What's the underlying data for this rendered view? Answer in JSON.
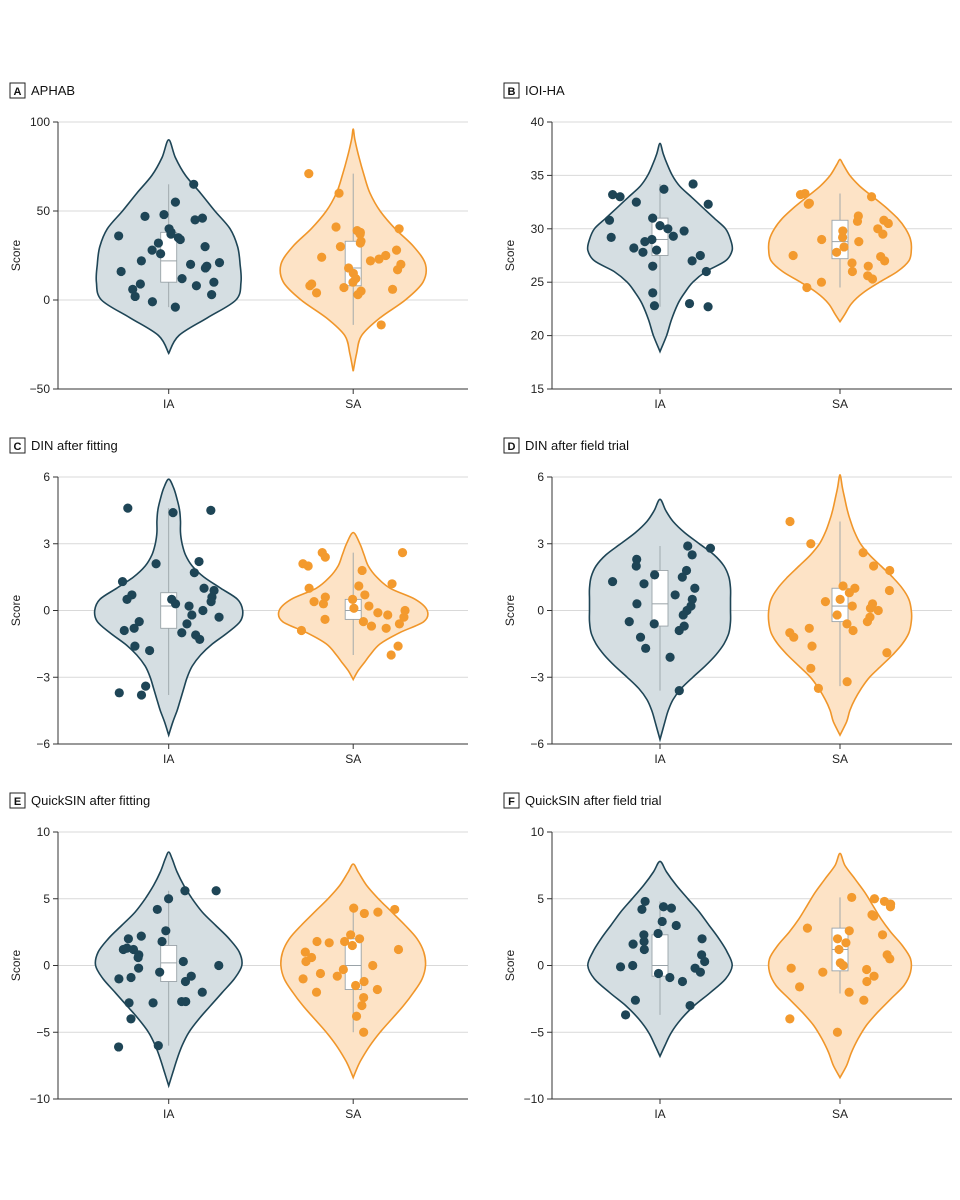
{
  "colors": {
    "ia_fill": "#d5dee2",
    "ia_stroke": "#1e4556",
    "ia_point": "#1e4556",
    "sa_fill": "#fde3c6",
    "sa_stroke": "#f0962a",
    "sa_point": "#f39a2e",
    "grid": "#d9d9d9"
  },
  "chart_data": [
    {
      "id": "A",
      "type": "violin",
      "title": "APHAB",
      "ylabel": "Score",
      "ylim": [
        -50,
        100
      ],
      "yticks": [
        -50,
        0,
        50,
        100
      ],
      "yticklabels": [
        "−50",
        "0",
        "50",
        "100"
      ],
      "categories": [
        "IA",
        "SA"
      ],
      "groups": [
        {
          "name": "IA",
          "violin_y": [
            -30,
            -20,
            -10,
            0,
            10,
            20,
            30,
            40,
            50,
            60,
            70,
            80,
            90
          ],
          "violin_halfwidth": [
            0,
            0.12,
            0.46,
            0.8,
            0.86,
            0.85,
            0.82,
            0.73,
            0.55,
            0.38,
            0.2,
            0.08,
            0
          ],
          "box": {
            "q1": 10,
            "median": 22,
            "q3": 38,
            "whisker_low": -4,
            "whisker_high": 65
          },
          "points": [
            65,
            55,
            48,
            47,
            46,
            45,
            40,
            38,
            37,
            36,
            35,
            34,
            32,
            30,
            28,
            26,
            22,
            21,
            20,
            19,
            18,
            16,
            12,
            10,
            9,
            8,
            6,
            3,
            2,
            -1,
            -4
          ]
        },
        {
          "name": "SA",
          "violin_y": [
            -40,
            -30,
            -20,
            -10,
            0,
            10,
            20,
            30,
            40,
            50,
            60,
            70,
            80,
            90,
            96
          ],
          "violin_halfwidth": [
            0,
            0.04,
            0.1,
            0.32,
            0.62,
            0.83,
            0.86,
            0.72,
            0.5,
            0.32,
            0.2,
            0.13,
            0.07,
            0.02,
            0
          ],
          "box": {
            "q1": 8,
            "median": 18,
            "q3": 33,
            "whisker_low": -14,
            "whisker_high": 71
          },
          "points": [
            71,
            60,
            41,
            40,
            39,
            38,
            37,
            33,
            32,
            30,
            28,
            25,
            24,
            23,
            22,
            20,
            18,
            17,
            15,
            12,
            10,
            9,
            8,
            7,
            6,
            5,
            4,
            3,
            -14
          ]
        }
      ]
    },
    {
      "id": "B",
      "type": "violin",
      "title": "IOI-HA",
      "ylabel": "Score",
      "ylim": [
        15,
        40
      ],
      "yticks": [
        15,
        20,
        25,
        30,
        35,
        40
      ],
      "yticklabels": [
        "15",
        "20",
        "25",
        "30",
        "35",
        "40"
      ],
      "categories": [
        "IA",
        "SA"
      ],
      "groups": [
        {
          "name": "IA",
          "violin_y": [
            18.5,
            20,
            21.5,
            23,
            24,
            25,
            26,
            27,
            28,
            29,
            30,
            31,
            32,
            33,
            34,
            35,
            36,
            37,
            38
          ],
          "violin_halfwidth": [
            0,
            0.08,
            0.14,
            0.22,
            0.3,
            0.4,
            0.56,
            0.8,
            0.88,
            0.86,
            0.8,
            0.66,
            0.52,
            0.38,
            0.24,
            0.15,
            0.09,
            0.04,
            0
          ],
          "box": {
            "q1": 27.5,
            "median": 29,
            "q3": 31,
            "whisker_low": 22.7,
            "whisker_high": 34.2
          },
          "points": [
            34.2,
            33.7,
            33.2,
            33,
            32.5,
            32.3,
            31,
            30.8,
            30.3,
            30,
            29.8,
            29.3,
            29.2,
            29,
            28.8,
            28.2,
            28,
            27.8,
            27.5,
            27,
            26.5,
            26,
            24,
            23,
            22.8,
            22.7
          ]
        },
        {
          "name": "SA",
          "violin_y": [
            21.3,
            22,
            23,
            24,
            25,
            26,
            27,
            28,
            29,
            30,
            31,
            32,
            33,
            34,
            35,
            36,
            36.5
          ],
          "violin_halfwidth": [
            0,
            0.06,
            0.14,
            0.28,
            0.48,
            0.7,
            0.84,
            0.87,
            0.86,
            0.8,
            0.7,
            0.56,
            0.4,
            0.24,
            0.12,
            0.04,
            0
          ],
          "box": {
            "q1": 27.2,
            "median": 28.8,
            "q3": 30.8,
            "whisker_low": 24.5,
            "whisker_high": 33.3
          },
          "points": [
            33.3,
            33.2,
            33,
            32.4,
            32.3,
            31.2,
            30.8,
            30.7,
            30.5,
            30,
            29.8,
            29.5,
            29.2,
            29,
            28.8,
            28.3,
            27.8,
            27.5,
            27.4,
            27,
            26.8,
            26.5,
            26,
            25.6,
            25.3,
            25,
            24.5
          ]
        }
      ]
    },
    {
      "id": "C",
      "type": "violin",
      "title": "DIN after fitting",
      "ylabel": "Score",
      "ylim": [
        -6,
        6
      ],
      "yticks": [
        -6,
        -3,
        0,
        3,
        6
      ],
      "yticklabels": [
        "−6",
        "−3",
        "0",
        "3",
        "6"
      ],
      "categories": [
        "IA",
        "SA"
      ],
      "groups": [
        {
          "name": "IA",
          "violin_y": [
            -5.6,
            -5,
            -4.5,
            -4,
            -3.5,
            -3,
            -2.5,
            -2,
            -1.5,
            -1,
            -0.5,
            0,
            0.5,
            1,
            1.5,
            2,
            2.5,
            3,
            3.5,
            4,
            4.5,
            5,
            5.5,
            5.9
          ],
          "violin_halfwidth": [
            0,
            0.05,
            0.1,
            0.14,
            0.18,
            0.22,
            0.28,
            0.38,
            0.52,
            0.7,
            0.85,
            0.88,
            0.82,
            0.62,
            0.42,
            0.28,
            0.2,
            0.16,
            0.14,
            0.14,
            0.13,
            0.1,
            0.06,
            0
          ],
          "box": {
            "q1": -0.8,
            "median": 0.2,
            "q3": 0.8,
            "whisker_low": -3.8,
            "whisker_high": 4.6
          },
          "points": [
            4.6,
            4.5,
            4.4,
            2.2,
            2.1,
            1.7,
            1.3,
            1.0,
            0.9,
            0.7,
            0.6,
            0.5,
            0.5,
            0.4,
            0.3,
            0.2,
            0,
            -0.2,
            -0.3,
            -0.5,
            -0.6,
            -0.8,
            -0.9,
            -1.0,
            -1.1,
            -1.3,
            -1.6,
            -1.8,
            -3.4,
            -3.7,
            -3.8
          ]
        },
        {
          "name": "SA",
          "violin_y": [
            -3.1,
            -2.7,
            -2.3,
            -2,
            -1.5,
            -1,
            -0.5,
            0,
            0.5,
            1,
            1.5,
            2,
            2.5,
            3,
            3.5
          ],
          "violin_halfwidth": [
            0,
            0.06,
            0.14,
            0.2,
            0.32,
            0.55,
            0.84,
            0.88,
            0.74,
            0.44,
            0.28,
            0.18,
            0.13,
            0.08,
            0
          ],
          "box": {
            "q1": -0.4,
            "median": 0,
            "q3": 0.5,
            "whisker_low": -2,
            "whisker_high": 2.6
          },
          "points": [
            2.6,
            2.6,
            2.4,
            2.1,
            2.0,
            1.8,
            1.2,
            1.1,
            1.0,
            0.7,
            0.6,
            0.5,
            0.4,
            0.3,
            0.2,
            0.1,
            0,
            -0.1,
            -0.2,
            -0.3,
            -0.4,
            -0.5,
            -0.6,
            -0.7,
            -0.8,
            -0.9,
            -1.6,
            -2.0
          ]
        }
      ]
    },
    {
      "id": "D",
      "type": "violin",
      "title": "DIN after field trial",
      "ylabel": "Score",
      "ylim": [
        -6,
        6
      ],
      "yticks": [
        -6,
        -3,
        0,
        3,
        6
      ],
      "yticklabels": [
        "−6",
        "−3",
        "0",
        "3",
        "6"
      ],
      "categories": [
        "IA",
        "SA"
      ],
      "groups": [
        {
          "name": "IA",
          "violin_y": [
            -5.8,
            -5,
            -4.5,
            -4,
            -3.5,
            -3,
            -2.5,
            -2,
            -1.5,
            -1,
            -0.5,
            0,
            0.5,
            1,
            1.5,
            2,
            2.5,
            3,
            3.5,
            4,
            4.5,
            5
          ],
          "violin_halfwidth": [
            0,
            0.06,
            0.1,
            0.16,
            0.26,
            0.4,
            0.55,
            0.68,
            0.78,
            0.84,
            0.86,
            0.86,
            0.86,
            0.86,
            0.84,
            0.78,
            0.66,
            0.48,
            0.3,
            0.16,
            0.07,
            0
          ],
          "box": {
            "q1": -0.7,
            "median": 0.3,
            "q3": 1.8,
            "whisker_low": -3.6,
            "whisker_high": 2.9
          },
          "points": [
            2.9,
            2.8,
            2.5,
            2.3,
            2.0,
            1.8,
            1.6,
            1.5,
            1.3,
            1.2,
            1.0,
            0.7,
            0.5,
            0.3,
            0.2,
            0,
            -0.2,
            -0.5,
            -0.6,
            -0.7,
            -0.9,
            -1.2,
            -1.7,
            -2.1,
            -3.6
          ]
        },
        {
          "name": "SA",
          "violin_y": [
            -5.6,
            -5,
            -4.5,
            -4,
            -3.5,
            -3,
            -2.5,
            -2,
            -1.5,
            -1,
            -0.5,
            0,
            0.5,
            1,
            1.5,
            2,
            2.5,
            3,
            3.5,
            4,
            4.5,
            5,
            5.5,
            6.1
          ],
          "violin_halfwidth": [
            0,
            0.08,
            0.12,
            0.18,
            0.26,
            0.36,
            0.5,
            0.64,
            0.76,
            0.84,
            0.87,
            0.87,
            0.84,
            0.76,
            0.64,
            0.5,
            0.36,
            0.25,
            0.18,
            0.13,
            0.09,
            0.06,
            0.03,
            0
          ],
          "box": {
            "q1": -0.5,
            "median": 0.2,
            "q3": 1.0,
            "whisker_low": -3.4,
            "whisker_high": 4.0
          },
          "points": [
            4.0,
            3.0,
            2.6,
            2.0,
            1.8,
            1.1,
            1.0,
            0.9,
            0.8,
            0.5,
            0.4,
            0.3,
            0.2,
            0.1,
            0,
            -0.2,
            -0.3,
            -0.5,
            -0.6,
            -0.8,
            -0.9,
            -1.0,
            -1.2,
            -1.6,
            -1.9,
            -2.6,
            -3.2,
            -3.5
          ]
        }
      ]
    },
    {
      "id": "E",
      "type": "violin",
      "title": "QuickSIN after fitting",
      "ylabel": "Score",
      "ylim": [
        -10,
        10
      ],
      "yticks": [
        -10,
        -5,
        0,
        5,
        10
      ],
      "yticklabels": [
        "−10",
        "−5",
        "0",
        "5",
        "10"
      ],
      "categories": [
        "IA",
        "SA"
      ],
      "groups": [
        {
          "name": "IA",
          "violin_y": [
            -9,
            -8,
            -7,
            -6,
            -5,
            -4,
            -3,
            -2,
            -1,
            0,
            1,
            2,
            3,
            4,
            5,
            6,
            7,
            8,
            8.5
          ],
          "violin_halfwidth": [
            0,
            0.05,
            0.1,
            0.16,
            0.24,
            0.36,
            0.5,
            0.64,
            0.78,
            0.87,
            0.84,
            0.72,
            0.56,
            0.4,
            0.28,
            0.18,
            0.1,
            0.04,
            0
          ],
          "box": {
            "q1": -1.2,
            "median": 0.2,
            "q3": 1.5,
            "whisker_low": -6,
            "whisker_high": 5.6
          },
          "points": [
            5.6,
            5.6,
            5.0,
            4.2,
            2.6,
            2.2,
            2.0,
            1.8,
            1.3,
            1.2,
            1.2,
            0.8,
            0.6,
            0.3,
            0,
            -0.2,
            -0.5,
            -0.8,
            -0.9,
            -1.0,
            -1.2,
            -2.0,
            -2.7,
            -2.7,
            -2.8,
            -2.8,
            -4.0,
            -6.0,
            -6.1
          ]
        },
        {
          "name": "SA",
          "violin_y": [
            -8.4,
            -7.5,
            -7,
            -6,
            -5,
            -4,
            -3,
            -2,
            -1,
            0,
            1,
            2,
            3,
            4,
            5,
            6,
            7,
            7.6
          ],
          "violin_halfwidth": [
            0,
            0.06,
            0.1,
            0.2,
            0.32,
            0.46,
            0.6,
            0.72,
            0.82,
            0.86,
            0.84,
            0.76,
            0.62,
            0.46,
            0.3,
            0.16,
            0.06,
            0
          ],
          "box": {
            "q1": -1.8,
            "median": 0,
            "q3": 2.0,
            "whisker_low": -5.0,
            "whisker_high": 4.3
          },
          "points": [
            4.3,
            4.2,
            4.0,
            3.9,
            2.3,
            2.0,
            1.8,
            1.8,
            1.7,
            1.5,
            1.2,
            1.0,
            0.6,
            0.3,
            0,
            -0.3,
            -0.6,
            -0.8,
            -1.0,
            -1.2,
            -1.5,
            -1.8,
            -2.0,
            -2.4,
            -3.0,
            -3.8,
            -5.0
          ]
        }
      ]
    },
    {
      "id": "F",
      "type": "violin",
      "title": "QuickSIN after field trial",
      "ylabel": "Score",
      "ylim": [
        -10,
        10
      ],
      "yticks": [
        -10,
        -5,
        0,
        5,
        10
      ],
      "yticklabels": [
        "−10",
        "−5",
        "0",
        "5",
        "10"
      ],
      "categories": [
        "IA",
        "SA"
      ],
      "groups": [
        {
          "name": "IA",
          "violin_y": [
            -6.8,
            -6,
            -5,
            -4,
            -3,
            -2,
            -1,
            0,
            1,
            2,
            3,
            4,
            5,
            6,
            7,
            7.8
          ],
          "violin_halfwidth": [
            0,
            0.06,
            0.14,
            0.26,
            0.42,
            0.62,
            0.8,
            0.88,
            0.82,
            0.72,
            0.6,
            0.48,
            0.34,
            0.2,
            0.08,
            0
          ],
          "box": {
            "q1": -0.8,
            "median": 0,
            "q3": 2.3,
            "whisker_low": -3.7,
            "whisker_high": 4.8
          },
          "points": [
            4.8,
            4.4,
            4.3,
            4.2,
            3.3,
            3.0,
            2.4,
            2.3,
            2.0,
            1.8,
            1.6,
            1.2,
            0.8,
            0.3,
            0,
            -0.1,
            -0.2,
            -0.5,
            -0.6,
            -0.9,
            -1.2,
            -2.6,
            -3.0,
            -3.7
          ]
        },
        {
          "name": "SA",
          "violin_y": [
            -8.4,
            -7.5,
            -6.5,
            -5.5,
            -4.5,
            -3.5,
            -2.5,
            -1.5,
            -0.5,
            0.5,
            1.5,
            2.5,
            3.5,
            4.5,
            5.5,
            6.5,
            7.5,
            8.4
          ],
          "violin_halfwidth": [
            0,
            0.08,
            0.14,
            0.22,
            0.32,
            0.46,
            0.62,
            0.78,
            0.86,
            0.86,
            0.76,
            0.62,
            0.5,
            0.4,
            0.3,
            0.18,
            0.06,
            0
          ],
          "box": {
            "q1": -0.4,
            "median": 1.2,
            "q3": 2.8,
            "whisker_low": -2.1,
            "whisker_high": 5.1
          },
          "points": [
            5.1,
            5.0,
            4.8,
            4.6,
            4.4,
            3.8,
            3.7,
            2.8,
            2.6,
            2.3,
            2.0,
            1.7,
            1.2,
            0.8,
            0.5,
            0.2,
            0,
            -0.2,
            -0.3,
            -0.5,
            -0.8,
            -1.2,
            -1.6,
            -2.0,
            -2.6,
            -4.0,
            -5.0
          ]
        }
      ]
    }
  ]
}
